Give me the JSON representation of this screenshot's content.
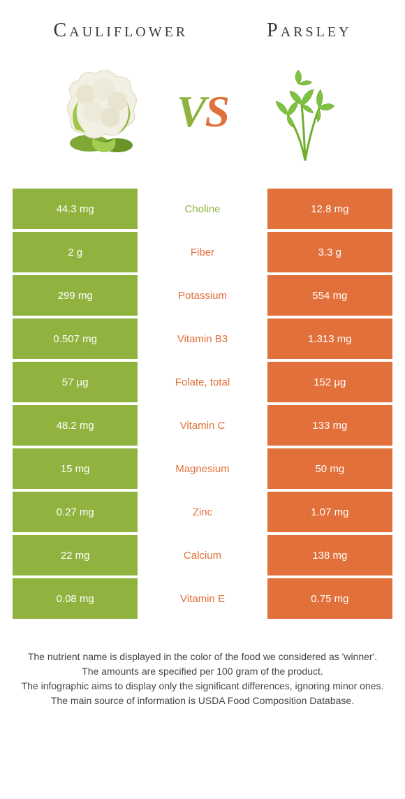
{
  "header": {
    "left_title": "Cauliflower",
    "right_title": "Parsley"
  },
  "vs": {
    "v": "V",
    "s": "S"
  },
  "colors": {
    "left": "#8fb33e",
    "right": "#e2703a",
    "background": "#ffffff",
    "text": "#333333"
  },
  "table": {
    "rows": [
      {
        "left": "44.3 mg",
        "label": "Choline",
        "right": "12.8 mg",
        "winner": "left"
      },
      {
        "left": "2 g",
        "label": "Fiber",
        "right": "3.3 g",
        "winner": "right"
      },
      {
        "left": "299 mg",
        "label": "Potassium",
        "right": "554 mg",
        "winner": "right"
      },
      {
        "left": "0.507 mg",
        "label": "Vitamin B3",
        "right": "1.313 mg",
        "winner": "right"
      },
      {
        "left": "57 µg",
        "label": "Folate, total",
        "right": "152 µg",
        "winner": "right"
      },
      {
        "left": "48.2 mg",
        "label": "Vitamin C",
        "right": "133 mg",
        "winner": "right"
      },
      {
        "left": "15 mg",
        "label": "Magnesium",
        "right": "50 mg",
        "winner": "right"
      },
      {
        "left": "0.27 mg",
        "label": "Zinc",
        "right": "1.07 mg",
        "winner": "right"
      },
      {
        "left": "22 mg",
        "label": "Calcium",
        "right": "138 mg",
        "winner": "right"
      },
      {
        "left": "0.08 mg",
        "label": "Vitamin E",
        "right": "0.75 mg",
        "winner": "right"
      }
    ]
  },
  "footer": {
    "line1": "The nutrient name is displayed in the color of the food we considered as 'winner'.",
    "line2": "The amounts are specified per 100 gram of the product.",
    "line3": "The infographic aims to display only the significant differences, ignoring minor ones.",
    "line4": "The main source of information is USDA Food Composition Database."
  }
}
